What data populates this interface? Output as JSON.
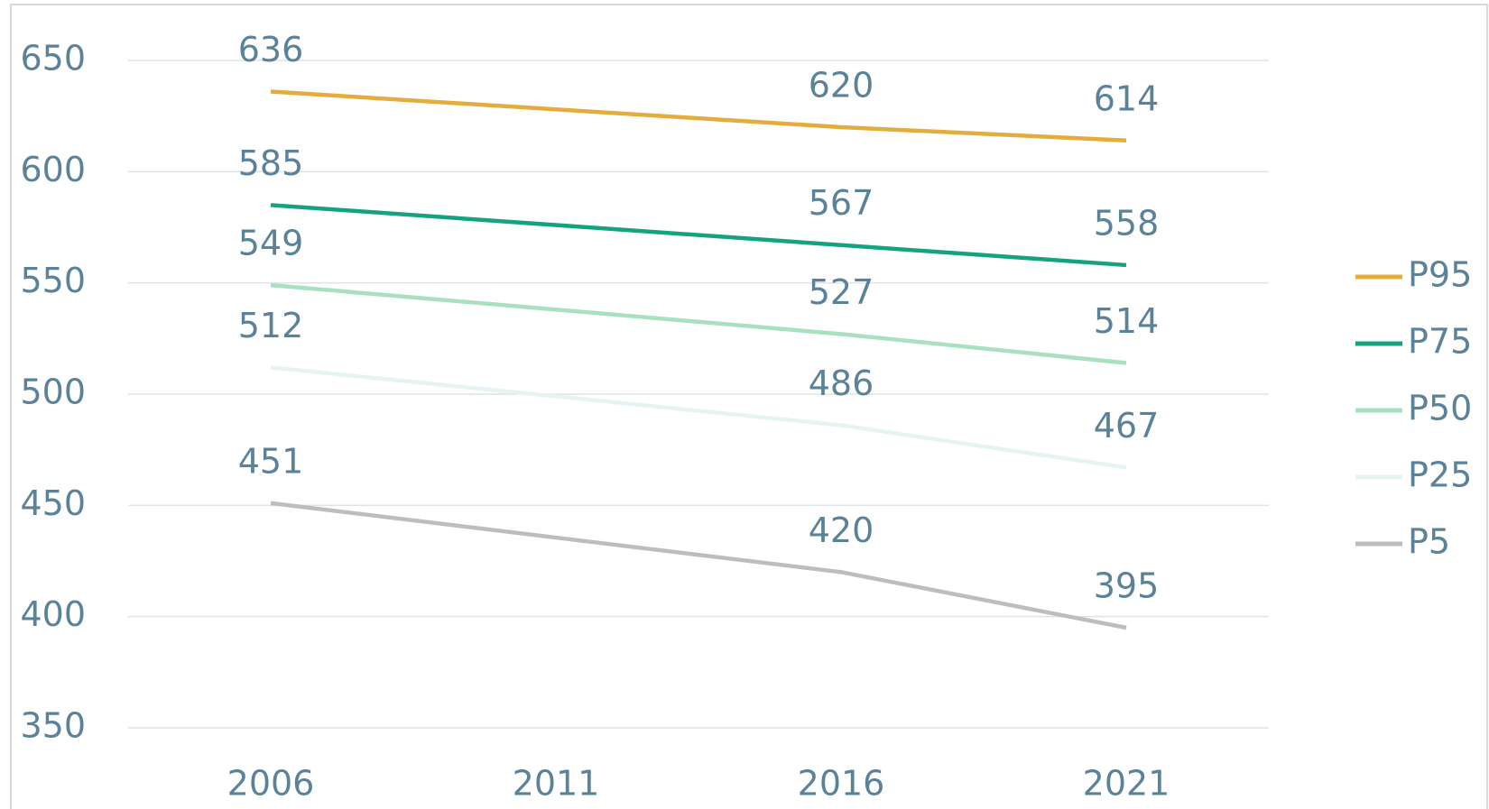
{
  "chart_data": {
    "type": "line",
    "x": [
      2006,
      2016,
      2021
    ],
    "xlim": [
      2003.5,
      2023.5
    ],
    "xticks": [
      2006,
      2011,
      2016,
      2021
    ],
    "ylim": [
      350,
      650
    ],
    "yticks": [
      350,
      400,
      450,
      500,
      550,
      600,
      650
    ],
    "grid": true,
    "legend": "right",
    "series": [
      {
        "name": "P95",
        "color": "#e3ac3c",
        "values": [
          636,
          620,
          614
        ]
      },
      {
        "name": "P75",
        "color": "#14a37f",
        "values": [
          585,
          567,
          558
        ]
      },
      {
        "name": "P50",
        "color": "#a8e0c0",
        "values": [
          549,
          527,
          514
        ]
      },
      {
        "name": "P25",
        "color": "#e6f5ec",
        "values": [
          512,
          486,
          467
        ]
      },
      {
        "name": "P5",
        "color": "#bdbdbd",
        "values": [
          451,
          420,
          395
        ]
      }
    ]
  }
}
